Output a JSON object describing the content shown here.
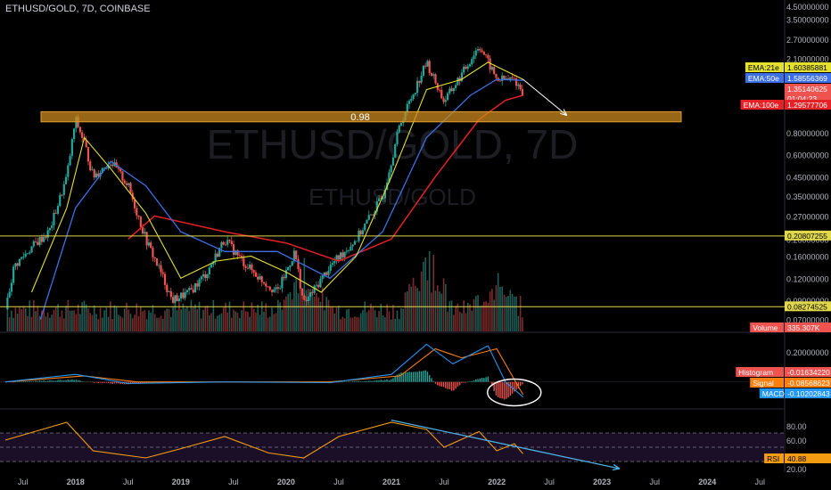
{
  "header": {
    "title": "ETHUSD/GOLD, 7D, COINBASE"
  },
  "watermark": {
    "main": "ETHUSD/GOLD, 7D",
    "sub": "ETHUSD/GOLD"
  },
  "colors": {
    "up": "#26a69a",
    "down": "#ef5350",
    "ema21": "#e3e02e",
    "ema50": "#3d6fe6",
    "ema100": "#e52125",
    "level": "#e0d84a",
    "zone": "#c98a1f",
    "rsi": "#f39c12",
    "signal": "#ff7f0e",
    "macd": "#2196f3"
  },
  "price_axis": {
    "ticks": [
      "4.50000000",
      "3.50000000",
      "2.70000000",
      "2.10000000",
      "1.60000000",
      "1.20000000",
      "0.80000000",
      "0.60000000",
      "0.45000000",
      "0.35000000",
      "0.27000000",
      "0.20000000",
      "0.16000000",
      "0.12000000",
      "0.09000000",
      "0.07000000"
    ],
    "tags": [
      {
        "label": "EMA:21e",
        "value": "1.60385881",
        "color": "ema21",
        "dark_text": true
      },
      {
        "label": "EMA:50e",
        "value": "1.58556369",
        "color": "ema50"
      },
      {
        "label": "",
        "value": "1.35140625",
        "sub": "01:04:23",
        "color": "down"
      },
      {
        "label": "EMA:100e",
        "value": "1.29577706",
        "color": "ema100"
      },
      {
        "label": "",
        "value": "0.20807255",
        "color": "level",
        "dark_text": true
      },
      {
        "label": "",
        "value": "0.08274525",
        "color": "level",
        "dark_text": true
      },
      {
        "label": "Volume",
        "value": "335.307K",
        "color": "down"
      }
    ]
  },
  "zone_label": "0.98",
  "macd_axis": {
    "ticks": [
      "0.20000000",
      "0.00000000"
    ]
  },
  "macd_tags": [
    {
      "label": "Histogram",
      "value": "-0.01634220",
      "color": "down"
    },
    {
      "label": "Signal",
      "value": "-0.08568623",
      "color": "signal"
    },
    {
      "label": "MACD",
      "value": "-0.10202843",
      "color": "macd"
    }
  ],
  "rsi_axis": {
    "ticks": [
      "80.00",
      "60.00",
      "20.00"
    ]
  },
  "rsi_tag": {
    "label": "RSI",
    "value": "40.88"
  },
  "time_axis": [
    "Jul",
    "2018",
    "Jul",
    "2019",
    "Jul",
    "2020",
    "Jul",
    "2021",
    "Jul",
    "2022",
    "Jul",
    "2023",
    "Jul",
    "2024",
    "Jul"
  ],
  "chart_data": {
    "type": "candlestick",
    "title": "ETHUSD/GOLD, 7D, COINBASE",
    "x_range": [
      "2017-05",
      "2024-09"
    ],
    "price_scale": "log",
    "y_range": [
      0.06,
      4.5
    ],
    "close_series": [
      {
        "t": "2017-05",
        "v": 0.08
      },
      {
        "t": "2017-06",
        "v": 0.14
      },
      {
        "t": "2017-08",
        "v": 0.18
      },
      {
        "t": "2017-10",
        "v": 0.22
      },
      {
        "t": "2017-12",
        "v": 0.45
      },
      {
        "t": "2018-01",
        "v": 0.95
      },
      {
        "t": "2018-02",
        "v": 0.7
      },
      {
        "t": "2018-03",
        "v": 0.45
      },
      {
        "t": "2018-05",
        "v": 0.55
      },
      {
        "t": "2018-07",
        "v": 0.4
      },
      {
        "t": "2018-09",
        "v": 0.2
      },
      {
        "t": "2018-11",
        "v": 0.12
      },
      {
        "t": "2018-12",
        "v": 0.09
      },
      {
        "t": "2019-02",
        "v": 0.1
      },
      {
        "t": "2019-04",
        "v": 0.13
      },
      {
        "t": "2019-06",
        "v": 0.2
      },
      {
        "t": "2019-08",
        "v": 0.15
      },
      {
        "t": "2019-10",
        "v": 0.12
      },
      {
        "t": "2019-12",
        "v": 0.1
      },
      {
        "t": "2020-02",
        "v": 0.17
      },
      {
        "t": "2020-03",
        "v": 0.085
      },
      {
        "t": "2020-06",
        "v": 0.14
      },
      {
        "t": "2020-09",
        "v": 0.2
      },
      {
        "t": "2020-12",
        "v": 0.35
      },
      {
        "t": "2021-02",
        "v": 0.9
      },
      {
        "t": "2021-05",
        "v": 2.0
      },
      {
        "t": "2021-07",
        "v": 1.2
      },
      {
        "t": "2021-09",
        "v": 1.7
      },
      {
        "t": "2021-11",
        "v": 2.5
      },
      {
        "t": "2022-01",
        "v": 1.6
      },
      {
        "t": "2022-03",
        "v": 1.6
      },
      {
        "t": "2022-04",
        "v": 1.35
      }
    ],
    "ema21": [
      {
        "t": "2017-08",
        "v": 0.1
      },
      {
        "t": "2017-12",
        "v": 0.3
      },
      {
        "t": "2018-02",
        "v": 0.75
      },
      {
        "t": "2018-05",
        "v": 0.5
      },
      {
        "t": "2018-09",
        "v": 0.28
      },
      {
        "t": "2019-01",
        "v": 0.12
      },
      {
        "t": "2019-05",
        "v": 0.15
      },
      {
        "t": "2019-09",
        "v": 0.16
      },
      {
        "t": "2020-01",
        "v": 0.13
      },
      {
        "t": "2020-05",
        "v": 0.1
      },
      {
        "t": "2020-09",
        "v": 0.16
      },
      {
        "t": "2021-01",
        "v": 0.45
      },
      {
        "t": "2021-05",
        "v": 1.4
      },
      {
        "t": "2021-09",
        "v": 1.6
      },
      {
        "t": "2021-12",
        "v": 2.0
      },
      {
        "t": "2022-04",
        "v": 1.6
      }
    ],
    "ema50": [
      {
        "t": "2017-09",
        "v": 0.07
      },
      {
        "t": "2018-01",
        "v": 0.3
      },
      {
        "t": "2018-05",
        "v": 0.55
      },
      {
        "t": "2018-09",
        "v": 0.4
      },
      {
        "t": "2019-01",
        "v": 0.22
      },
      {
        "t": "2019-06",
        "v": 0.17
      },
      {
        "t": "2019-12",
        "v": 0.17
      },
      {
        "t": "2020-06",
        "v": 0.12
      },
      {
        "t": "2020-12",
        "v": 0.22
      },
      {
        "t": "2021-05",
        "v": 0.75
      },
      {
        "t": "2021-10",
        "v": 1.3
      },
      {
        "t": "2022-01",
        "v": 1.6
      },
      {
        "t": "2022-04",
        "v": 1.58
      }
    ],
    "ema100": [
      {
        "t": "2018-07",
        "v": 0.2
      },
      {
        "t": "2018-10",
        "v": 0.27
      },
      {
        "t": "2019-06",
        "v": 0.22
      },
      {
        "t": "2020-01",
        "v": 0.19
      },
      {
        "t": "2020-07",
        "v": 0.15
      },
      {
        "t": "2021-01",
        "v": 0.2
      },
      {
        "t": "2021-06",
        "v": 0.45
      },
      {
        "t": "2021-11",
        "v": 0.95
      },
      {
        "t": "2022-02",
        "v": 1.22
      },
      {
        "t": "2022-04",
        "v": 1.3
      }
    ],
    "horizontal_levels": [
      0.20807255,
      0.08274525
    ],
    "resistance_zone": {
      "low": 0.92,
      "high": 1.05,
      "label": "0.98"
    },
    "projection_arrow": [
      {
        "t": "2022-04",
        "v": 1.6
      },
      {
        "t": "2022-09",
        "v": 1.0
      }
    ],
    "macd": {
      "ylim": [
        -0.15,
        0.3
      ],
      "macd_line": [
        {
          "t": "2017-05",
          "v": 0.0
        },
        {
          "t": "2018-01",
          "v": 0.05
        },
        {
          "t": "2018-07",
          "v": -0.01
        },
        {
          "t": "2019-06",
          "v": 0.0
        },
        {
          "t": "2020-06",
          "v": -0.005
        },
        {
          "t": "2021-01",
          "v": 0.05
        },
        {
          "t": "2021-05",
          "v": 0.25
        },
        {
          "t": "2021-08",
          "v": 0.12
        },
        {
          "t": "2021-12",
          "v": 0.24
        },
        {
          "t": "2022-02",
          "v": 0.0
        },
        {
          "t": "2022-04",
          "v": -0.1
        }
      ],
      "signal_line": [
        {
          "t": "2017-05",
          "v": 0.0
        },
        {
          "t": "2018-02",
          "v": 0.04
        },
        {
          "t": "2018-08",
          "v": 0.0
        },
        {
          "t": "2020-06",
          "v": 0.0
        },
        {
          "t": "2021-02",
          "v": 0.04
        },
        {
          "t": "2021-06",
          "v": 0.22
        },
        {
          "t": "2021-09",
          "v": 0.16
        },
        {
          "t": "2022-01",
          "v": 0.22
        },
        {
          "t": "2022-04",
          "v": -0.085
        }
      ],
      "last_values": {
        "histogram": -0.0163422,
        "signal": -0.08568623,
        "macd": -0.10202843
      }
    },
    "rsi": {
      "ylim": [
        20,
        100
      ],
      "levels": [
        70,
        50,
        30
      ],
      "series": [
        {
          "t": "2017-05",
          "v": 60
        },
        {
          "t": "2017-12",
          "v": 85
        },
        {
          "t": "2018-03",
          "v": 45
        },
        {
          "t": "2018-09",
          "v": 35
        },
        {
          "t": "2019-01",
          "v": 48
        },
        {
          "t": "2019-06",
          "v": 65
        },
        {
          "t": "2019-11",
          "v": 42
        },
        {
          "t": "2020-03",
          "v": 35
        },
        {
          "t": "2020-07",
          "v": 65
        },
        {
          "t": "2021-01",
          "v": 85
        },
        {
          "t": "2021-05",
          "v": 75
        },
        {
          "t": "2021-07",
          "v": 50
        },
        {
          "t": "2021-11",
          "v": 72
        },
        {
          "t": "2022-01",
          "v": 45
        },
        {
          "t": "2022-03",
          "v": 55
        },
        {
          "t": "2022-04",
          "v": 40.88
        }
      ],
      "trendline": [
        {
          "t": "2021-01",
          "v": 88
        },
        {
          "t": "2023-03",
          "v": 20
        }
      ]
    },
    "volume": {
      "last": "335.307K",
      "peaks": [
        {
          "t": "2020-03",
          "v": 0.6
        },
        {
          "t": "2021-05",
          "v": 1.0
        },
        {
          "t": "2022-01",
          "v": 0.5
        }
      ]
    }
  }
}
